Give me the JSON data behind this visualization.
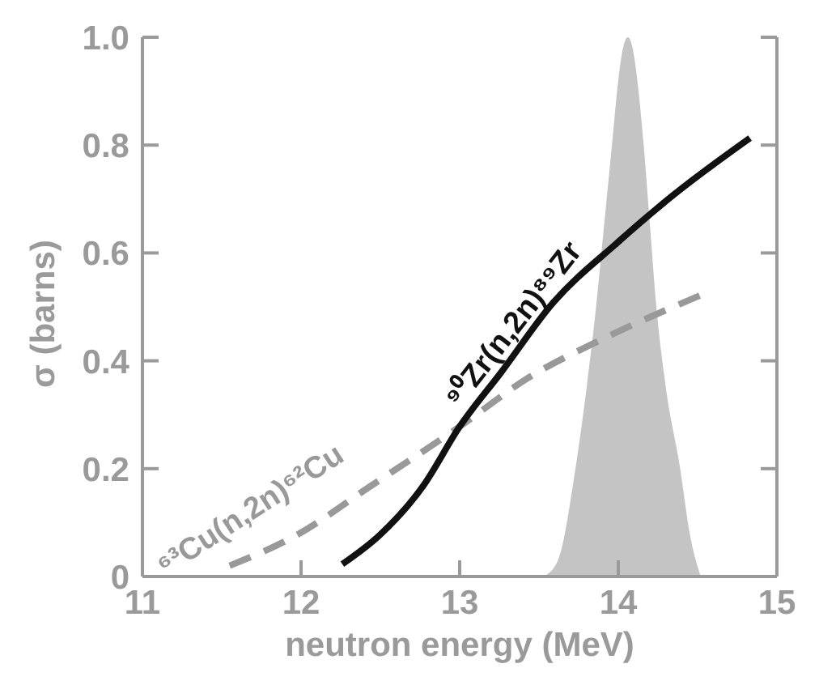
{
  "chart_data": {
    "type": "line",
    "xlabel": "neutron energy (MeV)",
    "ylabel": "σ (barns)",
    "xlim": [
      11,
      15
    ],
    "xticks": [
      11,
      12,
      13,
      14,
      15
    ],
    "ylim": [
      0,
      1
    ],
    "yticks": [
      0,
      0.2,
      0.4,
      0.6,
      0.8,
      {
        "value": 1,
        "label": "1.0"
      }
    ],
    "grid": false,
    "legend": false,
    "marker": "none",
    "series": [
      {
        "type": "area",
        "color": "#c4c4c4",
        "x": [
          13.53,
          13.62,
          13.73,
          13.8,
          13.86,
          13.91,
          13.96,
          14.0,
          14.03,
          14.06,
          14.09,
          14.12,
          14.16,
          14.2,
          14.24,
          14.3,
          14.39,
          14.45,
          14.52
        ],
        "values": [
          0,
          0.03,
          0.2,
          0.35,
          0.5,
          0.65,
          0.8,
          0.92,
          0.98,
          1.0,
          0.98,
          0.92,
          0.8,
          0.65,
          0.5,
          0.35,
          0.2,
          0.08,
          0
        ]
      },
      {
        "name": "⁶³Cu(n,2n)⁶²Cu",
        "color": "#999999",
        "line_style": "dashed",
        "x": [
          11.55,
          11.98,
          12.44,
          13.0,
          13.43,
          13.92,
          14.53
        ],
        "values": [
          0.02,
          0.078,
          0.168,
          0.278,
          0.368,
          0.443,
          0.523
        ]
      },
      {
        "name": "⁹⁰Zr(n,2n)⁸⁹Zr",
        "color": "#111111",
        "line_style": "solid",
        "x": [
          12.26,
          12.5,
          12.77,
          13.0,
          13.26,
          13.59,
          13.99,
          14.35,
          14.83
        ],
        "values": [
          0.023,
          0.078,
          0.168,
          0.278,
          0.378,
          0.508,
          0.618,
          0.708,
          0.813
        ]
      }
    ]
  }
}
